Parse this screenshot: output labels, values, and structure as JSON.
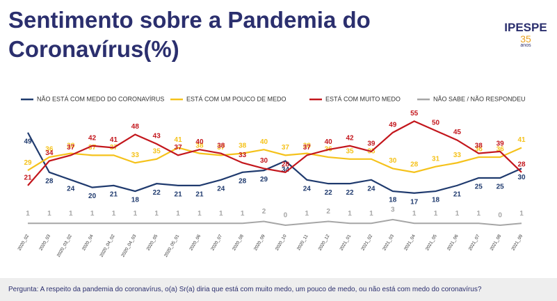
{
  "logo": {
    "name": "IPESPE",
    "years": "35",
    "sub": "anos"
  },
  "chart_data": {
    "type": "line",
    "title": "Sentimento sobre a Pandemia do Coronavírus(%)",
    "question": "Pergunta:  A respeito da pandemia do coronavírus, o(a) Sr(a) diria que está com muito medo, um pouco de medo, ou não está com medo do coronavírus?",
    "categories": [
      "2020_02",
      "2020_03",
      "2020_03_02",
      "2020_04",
      "2020_04_02",
      "2020_04_03",
      "2020_05",
      "2020_05_01",
      "2020_06",
      "2020_07",
      "2020_08",
      "2020_09",
      "2020_10",
      "2020_11",
      "2020_12",
      "2021_01",
      "2021_02",
      "2021_03",
      "2021_04",
      "2021_05",
      "2021_06",
      "2021_07",
      "2021_08",
      "2021_09"
    ],
    "series": [
      {
        "name": "NÃO ESTÁ COM MEDO DO CORONAVÍRUS",
        "color": "#1f3a6e",
        "values": [
          49,
          28,
          24,
          20,
          21,
          18,
          22,
          21,
          21,
          24,
          28,
          29,
          34,
          24,
          22,
          22,
          24,
          18,
          17,
          18,
          21,
          25,
          25,
          30
        ]
      },
      {
        "name": "ESTÁ COM UM POUCO DE MEDO",
        "color": "#f5c21b",
        "values": [
          29,
          36,
          38,
          37,
          37,
          33,
          35,
          41,
          38,
          37,
          38,
          40,
          37,
          38,
          36,
          35,
          35,
          30,
          28,
          31,
          33,
          36,
          36,
          41
        ]
      },
      {
        "name": "ESTÁ COM MUITO MEDO",
        "color": "#c3161c",
        "values": [
          21,
          34,
          37,
          42,
          41,
          48,
          43,
          37,
          40,
          38,
          33,
          30,
          28,
          37,
          40,
          42,
          39,
          49,
          55,
          50,
          45,
          38,
          39,
          28
        ]
      },
      {
        "name": "NÃO SABE / NÃO RESPONDEU",
        "color": "#a6a6a6",
        "values": [
          1,
          1,
          1,
          1,
          1,
          1,
          1,
          1,
          1,
          1,
          1,
          2,
          0,
          1,
          2,
          1,
          1,
          3,
          1,
          1,
          1,
          1,
          0,
          1
        ]
      }
    ]
  }
}
